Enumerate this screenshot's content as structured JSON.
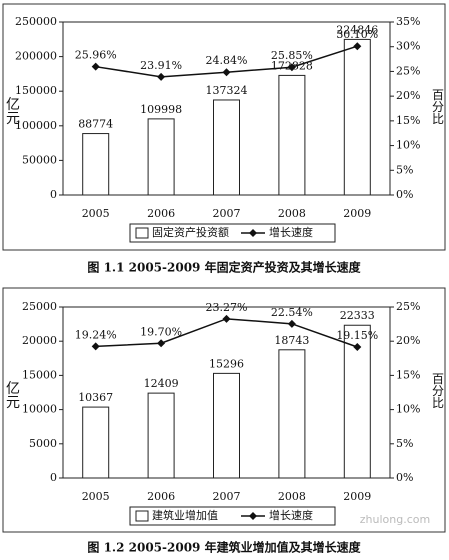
{
  "chart_data": [
    {
      "type": "bar",
      "title": "图 1.1 2005-2009 年固定资产投资及其增长速度",
      "y_label": "亿元",
      "y2_label": "百分比",
      "categories": [
        "2005",
        "2006",
        "2007",
        "2008",
        "2009"
      ],
      "series": [
        {
          "name": "固定资产投资额",
          "color": "#ffffff",
          "values": [
            88774,
            109998,
            137324,
            172828,
            224846
          ]
        },
        {
          "name": "增长速度",
          "type": "line",
          "axis": "y2",
          "color": "#111111",
          "values": [
            25.96,
            23.91,
            24.84,
            25.85,
            30.1
          ],
          "value_labels": [
            "25.96%",
            "23.91%",
            "24.84%",
            "25.85%",
            "30.10%"
          ]
        }
      ],
      "ylim": [
        0,
        250000
      ],
      "yticks": [
        0,
        50000,
        100000,
        150000,
        200000,
        250000
      ],
      "y2lim": [
        0,
        35
      ],
      "y2ticks": [
        {
          "value": 0,
          "label": "0%"
        },
        {
          "value": 5,
          "label": "5%"
        },
        {
          "value": 10,
          "label": "10%"
        },
        {
          "value": 15,
          "label": "15%"
        },
        {
          "value": 20,
          "label": "20%"
        },
        {
          "value": 25,
          "label": "25%"
        },
        {
          "value": 30,
          "label": "30%"
        },
        {
          "value": 35,
          "label": "35%"
        }
      ]
    },
    {
      "type": "bar",
      "title": "图 1.2 2005-2009 年建筑业增加值及其增长速度",
      "y_label": "亿元",
      "y2_label": "百分比",
      "categories": [
        "2005",
        "2006",
        "2007",
        "2008",
        "2009"
      ],
      "series": [
        {
          "name": "建筑业增加值",
          "color": "#ffffff",
          "values": [
            10367,
            12409,
            15296,
            18743,
            22333
          ]
        },
        {
          "name": "增长速度",
          "type": "line",
          "axis": "y2",
          "color": "#111111",
          "values": [
            19.24,
            19.7,
            23.27,
            22.54,
            19.15
          ],
          "value_labels": [
            "19.24%",
            "19.70%",
            "23.27%",
            "22.54%",
            "19.15%"
          ]
        }
      ],
      "ylim": [
        0,
        25000
      ],
      "yticks": [
        0,
        5000,
        10000,
        15000,
        20000,
        25000
      ],
      "y2lim": [
        0,
        25
      ],
      "y2ticks": [
        {
          "value": 0,
          "label": "0%"
        },
        {
          "value": 5,
          "label": "5%"
        },
        {
          "value": 10,
          "label": "10%"
        },
        {
          "value": 15,
          "label": "15%"
        },
        {
          "value": 20,
          "label": "20%"
        },
        {
          "value": 25,
          "label": "25%"
        }
      ]
    }
  ],
  "watermark": "zhulong.com"
}
